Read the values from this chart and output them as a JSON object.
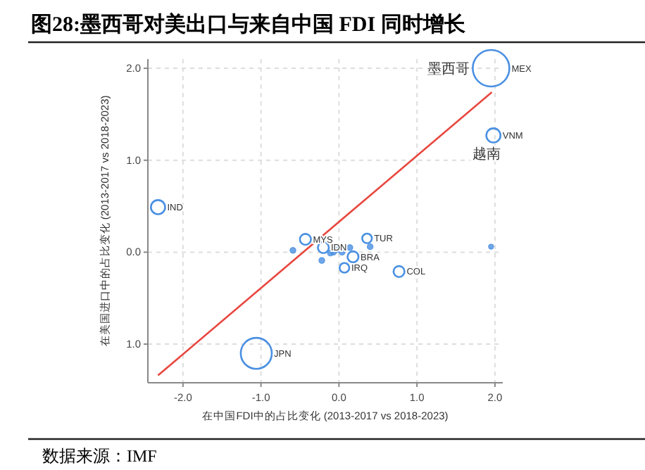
{
  "chart_data": {
    "type": "bubble",
    "title": "图28:墨西哥对美出口与来自中国 FDI 同时增长",
    "xlabel": "在中国FDI中的占比变化  (2013-2017 vs 2018-2023)",
    "ylabel": "在美国进口中的占比变化  (2013-2017 vs 2018-2023)",
    "xlim": [
      -2.45,
      2.1
    ],
    "ylim": [
      -1.42,
      2.1
    ],
    "xticks": [
      {
        "value": -2,
        "label": "-2.0"
      },
      {
        "value": -1,
        "label": "-1.0"
      },
      {
        "value": 0,
        "label": "0.0"
      },
      {
        "value": 1,
        "label": "1.0"
      },
      {
        "value": 2,
        "label": "2.0"
      }
    ],
    "yticks": [
      {
        "value": 2,
        "label": "2.0"
      },
      {
        "value": 1,
        "label": "1.0"
      },
      {
        "value": 0,
        "label": "0.0"
      },
      {
        "value": -1,
        "label": "1.0"
      }
    ],
    "grid": true,
    "series": [
      {
        "color": "#4a90e2",
        "x": [
          1.95,
          1.98,
          -2.32,
          -0.43,
          -0.2,
          0.36,
          0.18,
          0.07,
          0.77,
          -1.06,
          -0.59,
          -0.22,
          0.04,
          0.14,
          0.4,
          1.95,
          -0.07,
          -0.01,
          -0.11
        ],
        "values": [
          2.0,
          1.27,
          0.49,
          0.14,
          0.05,
          0.15,
          -0.05,
          -0.17,
          -0.21,
          -1.1,
          0.02,
          -0.09,
          0.0,
          0.05,
          0.06,
          0.06,
          0.0,
          0.03,
          -0.01
        ],
        "sizes": [
          1,
          0.15,
          0.15,
          0.09,
          0.09,
          0.07,
          0.09,
          0.07,
          0.09,
          0.72,
          0.025,
          0.025,
          0.025,
          0.025,
          0.025,
          0.02,
          0.025,
          0.025,
          0.025
        ]
      },
      {
        "type": "line",
        "color": "#e8473f",
        "x": [
          -2.32,
          1.96
        ],
        "values": [
          -1.34,
          1.74
        ]
      }
    ],
    "annotations": [
      {
        "text": "MEX",
        "x": 1.95,
        "y": 2.0
      },
      {
        "text": "墨西哥",
        "x": 1.95,
        "y": 2.0
      },
      {
        "text": "VNM",
        "x": 1.98,
        "y": 1.27
      },
      {
        "text": "越南",
        "x": 1.98,
        "y": 1.27
      },
      {
        "text": "IND",
        "x": -2.32,
        "y": 0.49
      },
      {
        "text": "MYS",
        "x": -0.43,
        "y": 0.14
      },
      {
        "text": "IDN",
        "x": -0.2,
        "y": 0.05
      },
      {
        "text": "TUR",
        "x": 0.36,
        "y": 0.15
      },
      {
        "text": "BRA",
        "x": 0.18,
        "y": -0.05
      },
      {
        "text": "IRQ",
        "x": 0.07,
        "y": -0.17
      },
      {
        "text": "COL",
        "x": 0.77,
        "y": -0.21
      },
      {
        "text": "JPN",
        "x": -1.06,
        "y": -1.1
      },
      "数据来源：IMF"
    ]
  }
}
